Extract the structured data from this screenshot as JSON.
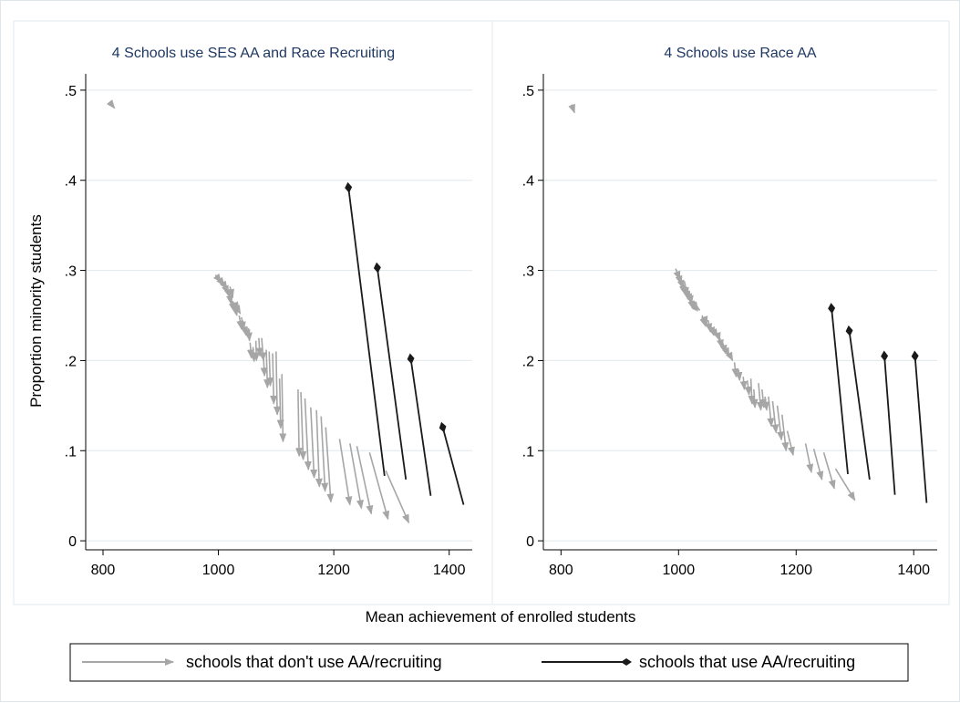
{
  "chart_data": {
    "type": "scatter",
    "description": "paired arrow plot; each arrow runs from pre-policy (start) to post-policy (end) values",
    "xlabel": "Mean achievement of enrolled students",
    "ylabel": "Proportion minority students",
    "xlim": [
      770,
      1440
    ],
    "ylim": [
      -0.01,
      0.51
    ],
    "x_ticks": [
      "800",
      "1000",
      "1200",
      "1400"
    ],
    "x_tick_values": [
      800,
      1000,
      1200,
      1400
    ],
    "y_ticks": [
      "0",
      ".1",
      ".2",
      ".3",
      ".4",
      ".5"
    ],
    "y_tick_values": [
      0,
      0.1,
      0.2,
      0.3,
      0.4,
      0.5
    ],
    "grid": true,
    "legend": "bottom",
    "colors": {
      "no_aa": "#a6a6a6",
      "aa": "#1a1a1a",
      "panel_title": "#1f3864",
      "grid": "#e5ecef"
    },
    "legend_items": [
      {
        "label": "schools that don't use AA/recruiting",
        "style": "arrow",
        "color": "#a6a6a6"
      },
      {
        "label": "schools that use AA/recruiting",
        "style": "diamond",
        "color": "#1a1a1a"
      }
    ],
    "panels": [
      {
        "title": "4 Schools use SES AA and Race Recruiting",
        "series": [
          {
            "name": "schools that don't use AA/recruiting",
            "arrows": [
              [
                815,
                0.484,
                820,
                0.48
              ],
              [
                995,
                0.295,
                1005,
                0.287
              ],
              [
                1000,
                0.292,
                1010,
                0.283
              ],
              [
                1005,
                0.289,
                1015,
                0.279
              ],
              [
                1010,
                0.285,
                1017,
                0.274
              ],
              [
                1015,
                0.281,
                1020,
                0.27
              ],
              [
                1018,
                0.278,
                1022,
                0.263
              ],
              [
                1020,
                0.282,
                1025,
                0.27
              ],
              [
                1022,
                0.268,
                1028,
                0.255
              ],
              [
                1025,
                0.266,
                1030,
                0.252
              ],
              [
                1028,
                0.263,
                1032,
                0.25
              ],
              [
                1030,
                0.262,
                1036,
                0.256
              ],
              [
                1033,
                0.258,
                1038,
                0.252
              ],
              [
                1036,
                0.25,
                1040,
                0.235
              ],
              [
                1040,
                0.248,
                1044,
                0.234
              ],
              [
                1044,
                0.24,
                1048,
                0.228
              ],
              [
                1048,
                0.238,
                1052,
                0.225
              ],
              [
                1052,
                0.236,
                1054,
                0.222
              ],
              [
                1055,
                0.22,
                1057,
                0.203
              ],
              [
                1060,
                0.215,
                1062,
                0.199
              ],
              [
                1065,
                0.222,
                1066,
                0.2
              ],
              [
                1070,
                0.225,
                1072,
                0.205
              ],
              [
                1075,
                0.225,
                1078,
                0.2
              ],
              [
                1078,
                0.205,
                1080,
                0.183
              ],
              [
                1083,
                0.212,
                1085,
                0.17
              ],
              [
                1088,
                0.21,
                1090,
                0.172
              ],
              [
                1094,
                0.208,
                1096,
                0.152
              ],
              [
                1100,
                0.21,
                1102,
                0.14
              ],
              [
                1106,
                0.18,
                1108,
                0.125
              ],
              [
                1110,
                0.185,
                1112,
                0.11
              ],
              [
                1138,
                0.168,
                1140,
                0.094
              ],
              [
                1143,
                0.165,
                1147,
                0.09
              ],
              [
                1150,
                0.158,
                1156,
                0.079
              ],
              [
                1160,
                0.148,
                1166,
                0.07
              ],
              [
                1170,
                0.145,
                1175,
                0.06
              ],
              [
                1178,
                0.138,
                1185,
                0.055
              ],
              [
                1186,
                0.126,
                1195,
                0.043
              ],
              [
                1210,
                0.113,
                1228,
                0.04
              ],
              [
                1228,
                0.108,
                1248,
                0.036
              ],
              [
                1240,
                0.105,
                1265,
                0.03
              ],
              [
                1262,
                0.098,
                1294,
                0.024
              ],
              [
                1290,
                0.078,
                1330,
                0.02
              ]
            ]
          },
          {
            "name": "schools that use AA/recruiting",
            "arrows": [
              [
                1288,
                0.072,
                1225,
                0.394
              ],
              [
                1325,
                0.068,
                1275,
                0.305
              ],
              [
                1368,
                0.05,
                1333,
                0.204
              ],
              [
                1425,
                0.04,
                1388,
                0.128
              ]
            ]
          }
        ]
      },
      {
        "title": "4 Schools use Race AA",
        "series": [
          {
            "name": "schools that don't use AA/recruiting",
            "arrows": [
              [
                818,
                0.484,
                823,
                0.475
              ],
              [
                995,
                0.302,
                1002,
                0.29
              ],
              [
                998,
                0.298,
                1005,
                0.285
              ],
              [
                1002,
                0.292,
                1008,
                0.28
              ],
              [
                1005,
                0.286,
                1012,
                0.275
              ],
              [
                1008,
                0.283,
                1013,
                0.272
              ],
              [
                1010,
                0.288,
                1014,
                0.272
              ],
              [
                1012,
                0.282,
                1016,
                0.268
              ],
              [
                1015,
                0.28,
                1020,
                0.265
              ],
              [
                1018,
                0.277,
                1022,
                0.263
              ],
              [
                1020,
                0.27,
                1025,
                0.257
              ],
              [
                1024,
                0.266,
                1028,
                0.256
              ],
              [
                1028,
                0.26,
                1032,
                0.255
              ],
              [
                1032,
                0.258,
                1036,
                0.256
              ],
              [
                1040,
                0.25,
                1046,
                0.238
              ],
              [
                1045,
                0.246,
                1048,
                0.24
              ],
              [
                1050,
                0.245,
                1054,
                0.232
              ],
              [
                1055,
                0.238,
                1060,
                0.228
              ],
              [
                1060,
                0.233,
                1066,
                0.226
              ],
              [
                1066,
                0.23,
                1070,
                0.222
              ],
              [
                1070,
                0.225,
                1074,
                0.214
              ],
              [
                1075,
                0.22,
                1080,
                0.208
              ],
              [
                1080,
                0.213,
                1086,
                0.205
              ],
              [
                1088,
                0.205,
                1092,
                0.2
              ],
              [
                1095,
                0.198,
                1098,
                0.182
              ],
              [
                1102,
                0.19,
                1104,
                0.178
              ],
              [
                1110,
                0.182,
                1112,
                0.168
              ],
              [
                1117,
                0.178,
                1120,
                0.162
              ],
              [
                1123,
                0.18,
                1125,
                0.152
              ],
              [
                1128,
                0.168,
                1130,
                0.148
              ],
              [
                1136,
                0.175,
                1140,
                0.145
              ],
              [
                1142,
                0.168,
                1145,
                0.148
              ],
              [
                1147,
                0.16,
                1150,
                0.145
              ],
              [
                1153,
                0.16,
                1158,
                0.127
              ],
              [
                1160,
                0.155,
                1166,
                0.12
              ],
              [
                1168,
                0.15,
                1175,
                0.112
              ],
              [
                1176,
                0.14,
                1183,
                0.1
              ],
              [
                1185,
                0.122,
                1195,
                0.095
              ],
              [
                1216,
                0.108,
                1226,
                0.076
              ],
              [
                1230,
                0.102,
                1244,
                0.068
              ],
              [
                1247,
                0.098,
                1265,
                0.058
              ],
              [
                1267,
                0.08,
                1300,
                0.045
              ]
            ]
          },
          {
            "name": "schools that use AA/recruiting",
            "arrows": [
              [
                1288,
                0.074,
                1260,
                0.26
              ],
              [
                1325,
                0.068,
                1290,
                0.235
              ],
              [
                1368,
                0.051,
                1350,
                0.207
              ],
              [
                1422,
                0.042,
                1402,
                0.207
              ]
            ]
          }
        ]
      }
    ]
  }
}
